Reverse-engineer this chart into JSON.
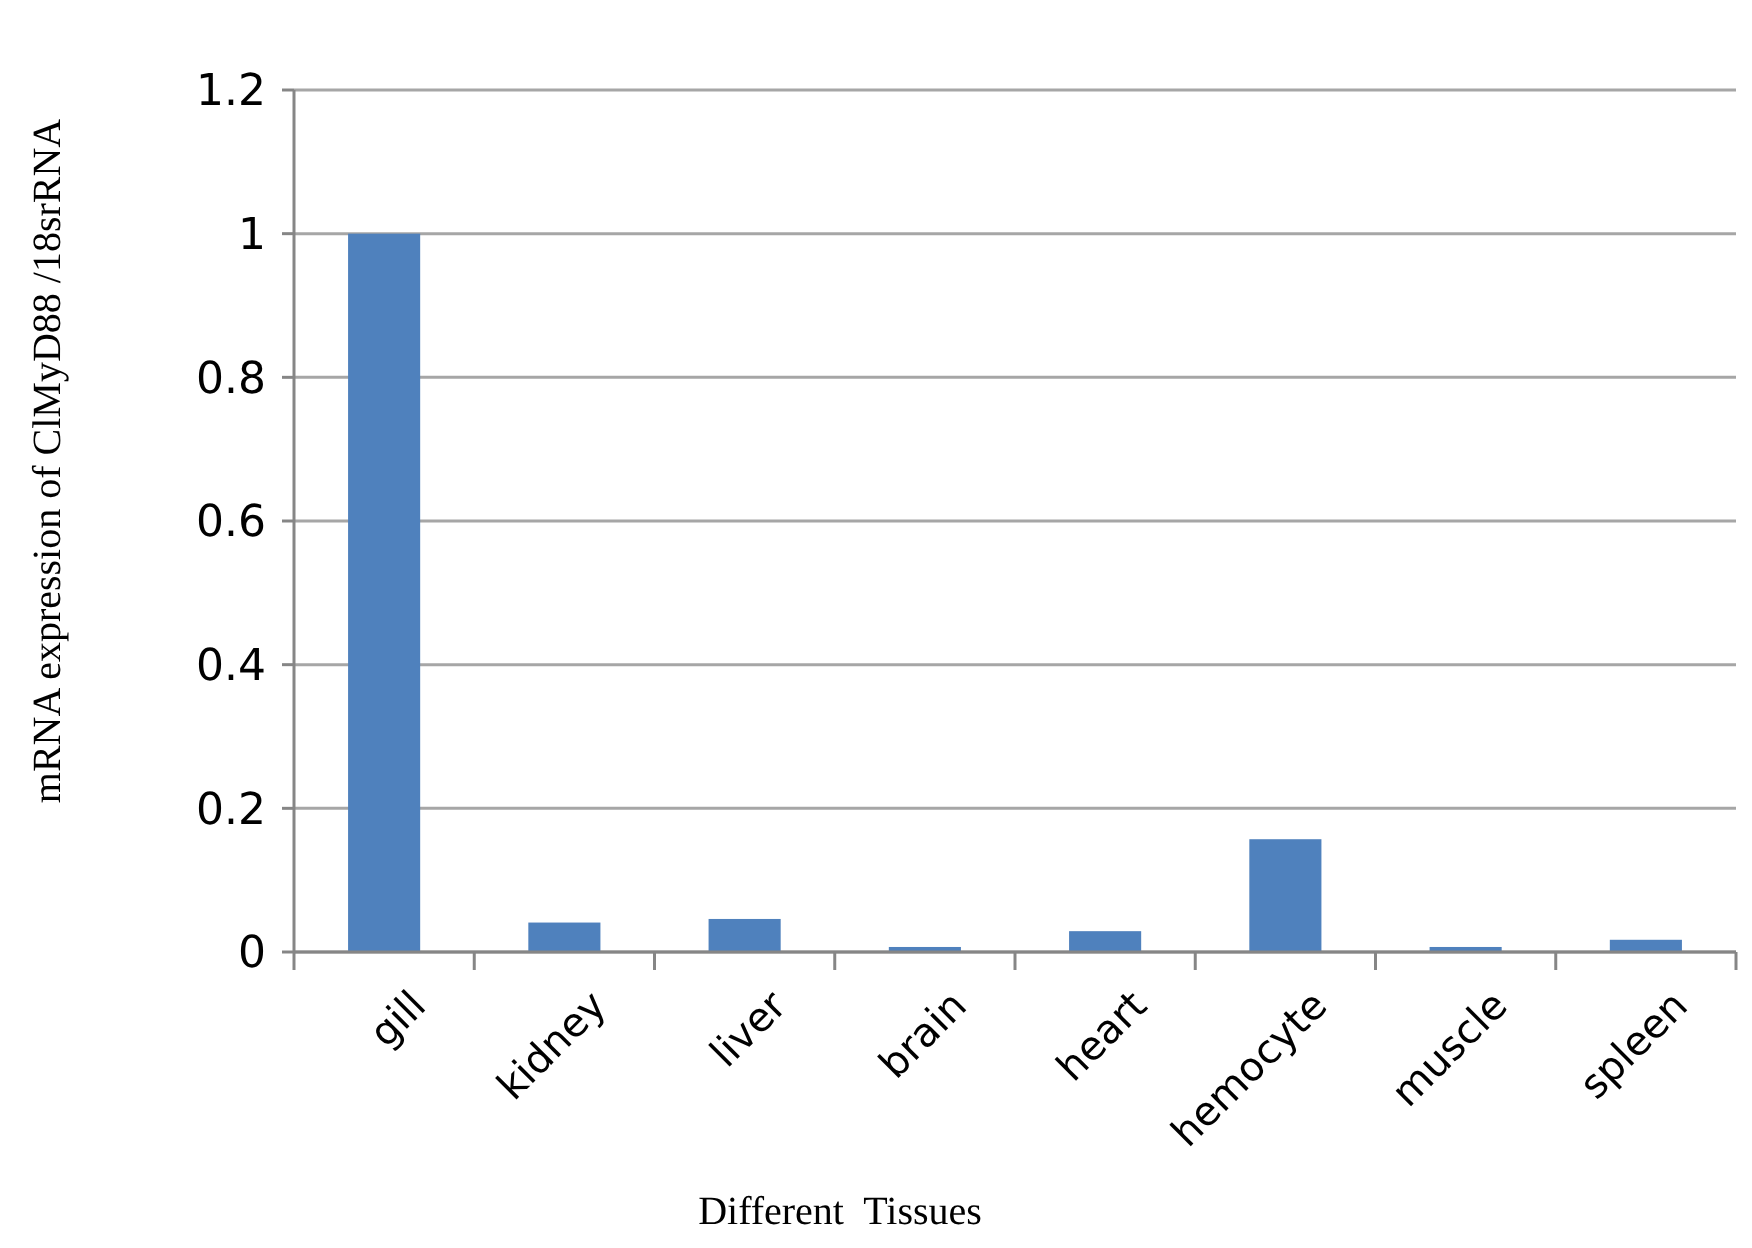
{
  "chart_data": {
    "type": "bar",
    "xlabel": "Different  Tissues",
    "ylabel": "mRNA expression of ClMyD88 /18srRNA",
    "categories": [
      "gill",
      "kidney",
      "liver",
      "brain",
      "heart",
      "hemocyte",
      "muscle",
      "spleen"
    ],
    "values": [
      1,
      0.041,
      0.046,
      0.007,
      0.029,
      0.157,
      0.007,
      0.017
    ],
    "color": "#4f81bd",
    "ylim": [
      0,
      1.2
    ],
    "yticks": [
      0,
      0.2,
      0.4,
      0.6,
      0.8,
      1,
      1.2
    ],
    "grid": "y"
  }
}
